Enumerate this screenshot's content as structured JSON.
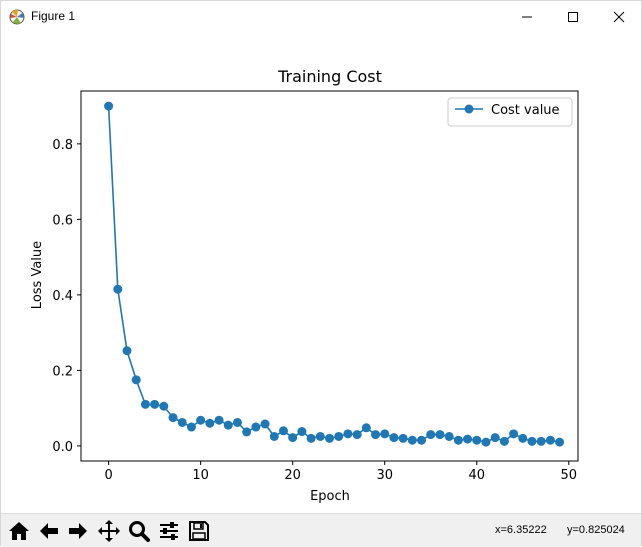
{
  "window": {
    "title": "Figure 1",
    "icons": {
      "app": "matplotlib-figure-icon",
      "minimize": "minimize-icon",
      "maximize": "maximize-icon",
      "close": "close-icon"
    }
  },
  "chart_data": {
    "type": "line",
    "title": "Training Cost",
    "xlabel": "Epoch",
    "ylabel": "Loss Value",
    "xlim": [
      -3,
      51
    ],
    "ylim": [
      -0.04,
      0.94
    ],
    "xticks": [
      0,
      10,
      20,
      30,
      40,
      50
    ],
    "yticks": [
      0.0,
      0.2,
      0.4,
      0.6,
      0.8
    ],
    "ytick_labels": [
      "0.0",
      "0.2",
      "0.4",
      "0.6",
      "0.8"
    ],
    "legend": {
      "placement": "top-right",
      "entries": [
        "Cost value"
      ]
    },
    "grid": false,
    "series": [
      {
        "name": "Cost value",
        "color": "#1f77b4",
        "marker": "circle",
        "x": [
          0,
          1,
          2,
          3,
          4,
          5,
          6,
          7,
          8,
          9,
          10,
          11,
          12,
          13,
          14,
          15,
          16,
          17,
          18,
          19,
          20,
          21,
          22,
          23,
          24,
          25,
          26,
          27,
          28,
          29,
          30,
          31,
          32,
          33,
          34,
          35,
          36,
          37,
          38,
          39,
          40,
          41,
          42,
          43,
          44,
          45,
          46,
          47,
          48,
          49
        ],
        "values": [
          0.9,
          0.415,
          0.252,
          0.175,
          0.11,
          0.11,
          0.105,
          0.075,
          0.062,
          0.05,
          0.068,
          0.06,
          0.068,
          0.055,
          0.062,
          0.037,
          0.05,
          0.058,
          0.025,
          0.04,
          0.022,
          0.038,
          0.02,
          0.025,
          0.02,
          0.025,
          0.032,
          0.03,
          0.048,
          0.03,
          0.032,
          0.022,
          0.02,
          0.015,
          0.015,
          0.03,
          0.03,
          0.025,
          0.015,
          0.018,
          0.015,
          0.01,
          0.022,
          0.012,
          0.032,
          0.02,
          0.012,
          0.012,
          0.015,
          0.01
        ]
      }
    ]
  },
  "toolbar": {
    "buttons": [
      {
        "name": "home-icon"
      },
      {
        "name": "back-arrow-icon"
      },
      {
        "name": "forward-arrow-icon"
      },
      {
        "name": "pan-icon"
      },
      {
        "name": "zoom-icon"
      },
      {
        "name": "configure-subplots-icon"
      },
      {
        "name": "save-icon"
      }
    ],
    "x_readout": "x=6.35222",
    "y_readout": "y=0.825024"
  }
}
